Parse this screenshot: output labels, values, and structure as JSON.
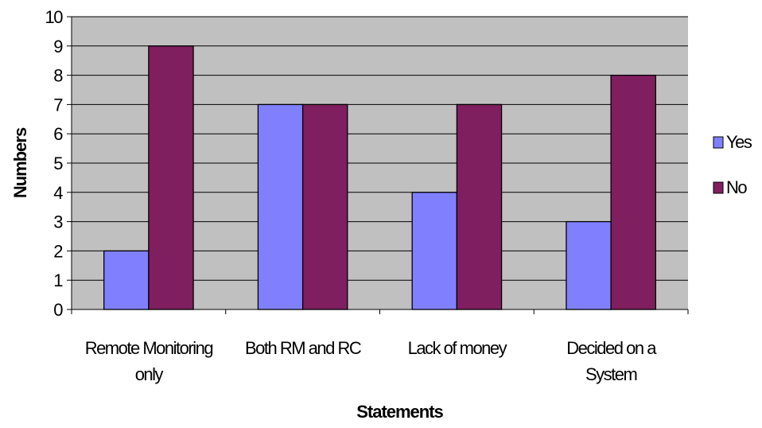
{
  "chart_data": {
    "type": "bar",
    "categories": [
      [
        "Remote Monitoring",
        "only"
      ],
      [
        "Both RM and RC"
      ],
      [
        "Lack of money"
      ],
      [
        "Decided on a",
        "System"
      ]
    ],
    "series": [
      {
        "name": "Yes",
        "values": [
          2,
          7,
          4,
          3
        ],
        "color": "#8080ff"
      },
      {
        "name": "No",
        "values": [
          9,
          7,
          7,
          8
        ],
        "color": "#7f1f5f"
      }
    ],
    "xlabel": "Statements",
    "ylabel": "Numbers",
    "ylim": [
      0,
      10
    ],
    "yticks": [
      0,
      1,
      2,
      3,
      4,
      5,
      6,
      7,
      8,
      9,
      10
    ],
    "grid": true,
    "legend_position": "right",
    "plot_background": "#c0c0c0"
  }
}
